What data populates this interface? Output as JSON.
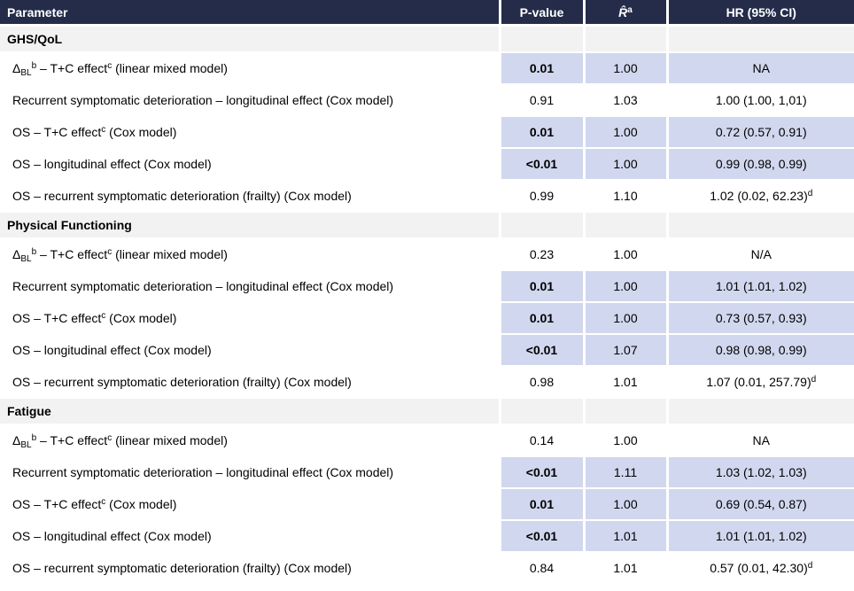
{
  "table": {
    "columns": [
      "Parameter",
      "P-value",
      "*R̂*^a^",
      "HR (95% CI)"
    ],
    "colors": {
      "header_bg": "#242c4a",
      "header_text": "#ffffff",
      "section_bg": "#f2f2f3",
      "highlight_bg": "#d1d7ee",
      "row_bg": "#ffffff",
      "text": "#000000"
    },
    "sections": [
      {
        "name": "GHS/QoL",
        "rows": [
          {
            "param": "Δ~BL~^b^ – T+C effect^c^ (linear mixed model)",
            "p": "0.01",
            "rhat": "1.00",
            "hr": "NA",
            "significant": true
          },
          {
            "param": "Recurrent symptomatic deterioration – longitudinal effect (Cox model)",
            "p": "0.91",
            "rhat": "1.03",
            "hr": "1.00 (1.00, 1,01)",
            "significant": false
          },
          {
            "param": "OS – T+C effect^c^ (Cox model)",
            "p": "0.01",
            "rhat": "1.00",
            "hr": "0.72 (0.57, 0.91)",
            "significant": true
          },
          {
            "param": "OS – longitudinal effect (Cox model)",
            "p": "<0.01",
            "rhat": "1.00",
            "hr": "0.99 (0.98, 0.99)",
            "significant": true
          },
          {
            "param": "OS – recurrent symptomatic deterioration (frailty) (Cox model)",
            "p": "0.99",
            "rhat": "1.10",
            "hr": "1.02 (0.02, 62.23)^d^",
            "significant": false
          }
        ]
      },
      {
        "name": "Physical Functioning",
        "rows": [
          {
            "param": "Δ~BL~^b^ – T+C effect^c^ (linear mixed model)",
            "p": "0.23",
            "rhat": "1.00",
            "hr": "N/A",
            "significant": false
          },
          {
            "param": "Recurrent symptomatic deterioration – longitudinal effect (Cox model)",
            "p": "0.01",
            "rhat": "1.00",
            "hr": "1.01 (1.01, 1.02)",
            "significant": true
          },
          {
            "param": "OS – T+C effect^c^ (Cox model)",
            "p": "0.01",
            "rhat": "1.00",
            "hr": "0.73 (0.57, 0.93)",
            "significant": true
          },
          {
            "param": "OS – longitudinal effect (Cox model)",
            "p": "<0.01",
            "rhat": "1.07",
            "hr": "0.98 (0.98, 0.99)",
            "significant": true
          },
          {
            "param": "OS – recurrent symptomatic deterioration (frailty) (Cox model)",
            "p": "0.98",
            "rhat": "1.01",
            "hr": "1.07 (0.01, 257.79)^d^",
            "significant": false
          }
        ]
      },
      {
        "name": "Fatigue",
        "rows": [
          {
            "param": "Δ~BL~^b^ – T+C effect^c^ (linear mixed model)",
            "p": "0.14",
            "rhat": "1.00",
            "hr": "NA",
            "significant": false
          },
          {
            "param": "Recurrent symptomatic deterioration – longitudinal effect (Cox model)",
            "p": "<0.01",
            "rhat": "1.11",
            "hr": "1.03 (1.02, 1.03)",
            "significant": true
          },
          {
            "param": "OS – T+C effect^c^ (Cox model)",
            "p": "0.01",
            "rhat": "1.00",
            "hr": "0.69 (0.54, 0.87)",
            "significant": true
          },
          {
            "param": "OS – longitudinal effect (Cox model)",
            "p": "<0.01",
            "rhat": "1.01",
            "hr": "1.01 (1.01, 1.02)",
            "significant": true
          },
          {
            "param": "OS – recurrent symptomatic deterioration (frailty) (Cox model)",
            "p": "0.84",
            "rhat": "1.01",
            "hr": "0.57 (0.01, 42.30)^d^",
            "significant": false
          }
        ]
      }
    ]
  }
}
